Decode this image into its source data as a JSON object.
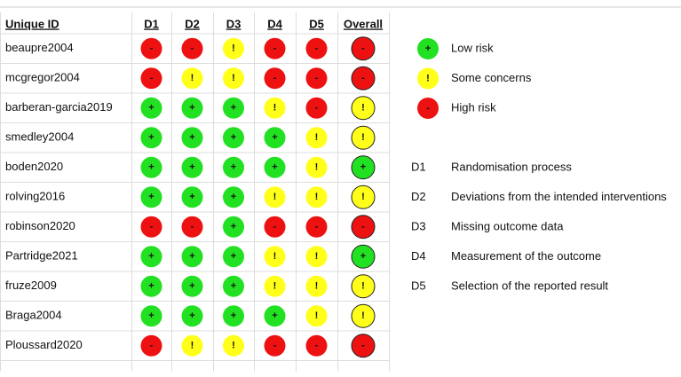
{
  "table": {
    "headers": [
      "Unique ID",
      "D1",
      "D2",
      "D3",
      "D4",
      "D5",
      "Overall"
    ],
    "rows": [
      [
        "beaupre2004",
        "-",
        "-",
        "!",
        "-",
        "-",
        "-"
      ],
      [
        "mcgregor2004",
        "-",
        "!",
        "!",
        "-",
        "-",
        "-"
      ],
      [
        "barberan-garcia2019",
        "+",
        "+",
        "+",
        "!",
        "-",
        "!"
      ],
      [
        "smedley2004",
        "+",
        "+",
        "+",
        "+",
        "!",
        "!"
      ],
      [
        "boden2020",
        "+",
        "+",
        "+",
        "+",
        "!",
        "+"
      ],
      [
        "rolving2016",
        "+",
        "+",
        "+",
        "!",
        "!",
        "!"
      ],
      [
        "robinson2020",
        "-",
        "-",
        "+",
        "-",
        "-",
        "-"
      ],
      [
        "Partridge2021",
        "+",
        "+",
        "+",
        "!",
        "!",
        "+"
      ],
      [
        "fruze2009",
        "+",
        "+",
        "+",
        "!",
        "!",
        "!"
      ],
      [
        "Braga2004",
        "+",
        "+",
        "+",
        "+",
        "!",
        "!"
      ],
      [
        "Ploussard2020",
        "-",
        "!",
        "!",
        "-",
        "-",
        "-"
      ]
    ]
  },
  "legend": [
    {
      "symbol": "+",
      "label": "Low risk",
      "color": "#22e022"
    },
    {
      "symbol": "!",
      "label": "Some concerns",
      "color": "#ffff1a"
    },
    {
      "symbol": "-",
      "label": "High risk",
      "color": "#ee1111"
    }
  ],
  "domains": [
    {
      "code": "D1",
      "label": "Randomisation process"
    },
    {
      "code": "D2",
      "label": "Deviations from the intended interventions"
    },
    {
      "code": "D3",
      "label": "Missing outcome data"
    },
    {
      "code": "D4",
      "label": "Measurement of the outcome"
    },
    {
      "code": "D5",
      "label": "Selection of the reported result"
    }
  ]
}
